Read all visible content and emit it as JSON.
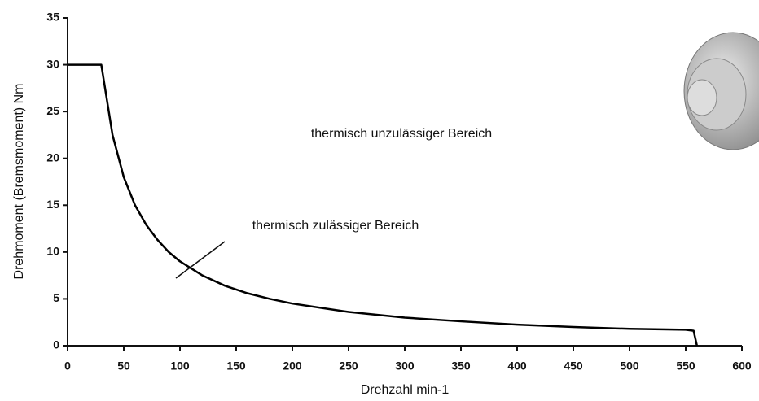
{
  "chart_data": {
    "type": "line",
    "x_label": "Drehzahl min-1",
    "y_label": "Drehmoment (Bremsmoment) Nm",
    "annotations": [
      "thermisch unzulässiger Bereich",
      "thermisch zulässiger Bereich"
    ],
    "x": [
      0,
      30,
      40,
      50,
      60,
      70,
      80,
      90,
      100,
      120,
      140,
      160,
      180,
      200,
      250,
      300,
      350,
      400,
      450,
      500,
      550,
      557,
      560
    ],
    "series": [
      {
        "color": "#000000",
        "values": [
          30,
          30,
          22.5,
          18,
          15,
          12.9,
          11.3,
          10,
          9,
          7.5,
          6.4,
          5.6,
          5,
          4.5,
          3.6,
          3,
          2.6,
          2.25,
          2,
          1.8,
          1.7,
          1.6,
          0
        ]
      }
    ],
    "xlim": [
      0,
      600
    ],
    "xticks": [
      0,
      50,
      100,
      150,
      200,
      250,
      300,
      350,
      400,
      450,
      500,
      550,
      600
    ],
    "ylim": [
      0,
      35
    ],
    "yticks": [
      0,
      5,
      10,
      15,
      20,
      25,
      30,
      35
    ]
  }
}
